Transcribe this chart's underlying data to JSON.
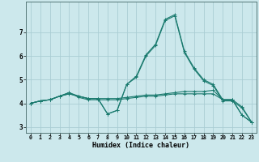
{
  "xlabel": "Humidex (Indice chaleur)",
  "ylabel": "",
  "bg_color": "#cce8ec",
  "grid_color": "#aacdd4",
  "line_color": "#1a7a6e",
  "xmin": -0.5,
  "xmax": 23.5,
  "ymin": 2.75,
  "ymax": 8.3,
  "yticks": [
    3,
    4,
    5,
    6,
    7
  ],
  "xticks": [
    0,
    1,
    2,
    3,
    4,
    5,
    6,
    7,
    8,
    9,
    10,
    11,
    12,
    13,
    14,
    15,
    16,
    17,
    18,
    19,
    20,
    21,
    22,
    23
  ],
  "series": [
    [
      4.0,
      4.1,
      4.15,
      4.3,
      4.4,
      4.3,
      4.2,
      4.2,
      3.55,
      3.7,
      4.8,
      5.15,
      6.05,
      6.5,
      7.55,
      7.75,
      6.2,
      5.5,
      5.0,
      4.8,
      4.15,
      4.15,
      3.85,
      3.2
    ],
    [
      4.0,
      4.1,
      4.15,
      4.3,
      4.45,
      4.3,
      4.2,
      4.2,
      4.2,
      4.2,
      4.25,
      4.3,
      4.35,
      4.35,
      4.4,
      4.45,
      4.5,
      4.5,
      4.5,
      4.55,
      4.15,
      4.15,
      3.5,
      3.2
    ],
    [
      4.0,
      4.1,
      4.15,
      4.3,
      4.45,
      4.25,
      4.15,
      4.15,
      4.15,
      4.15,
      4.2,
      4.25,
      4.3,
      4.3,
      4.35,
      4.4,
      4.4,
      4.4,
      4.4,
      4.4,
      4.15,
      4.15,
      3.5,
      3.2
    ],
    [
      4.0,
      4.1,
      4.15,
      4.3,
      4.4,
      4.3,
      4.2,
      4.2,
      3.55,
      3.7,
      4.8,
      5.1,
      6.0,
      6.45,
      7.5,
      7.7,
      6.15,
      5.45,
      4.95,
      4.75,
      4.1,
      4.1,
      3.8,
      3.2
    ]
  ]
}
